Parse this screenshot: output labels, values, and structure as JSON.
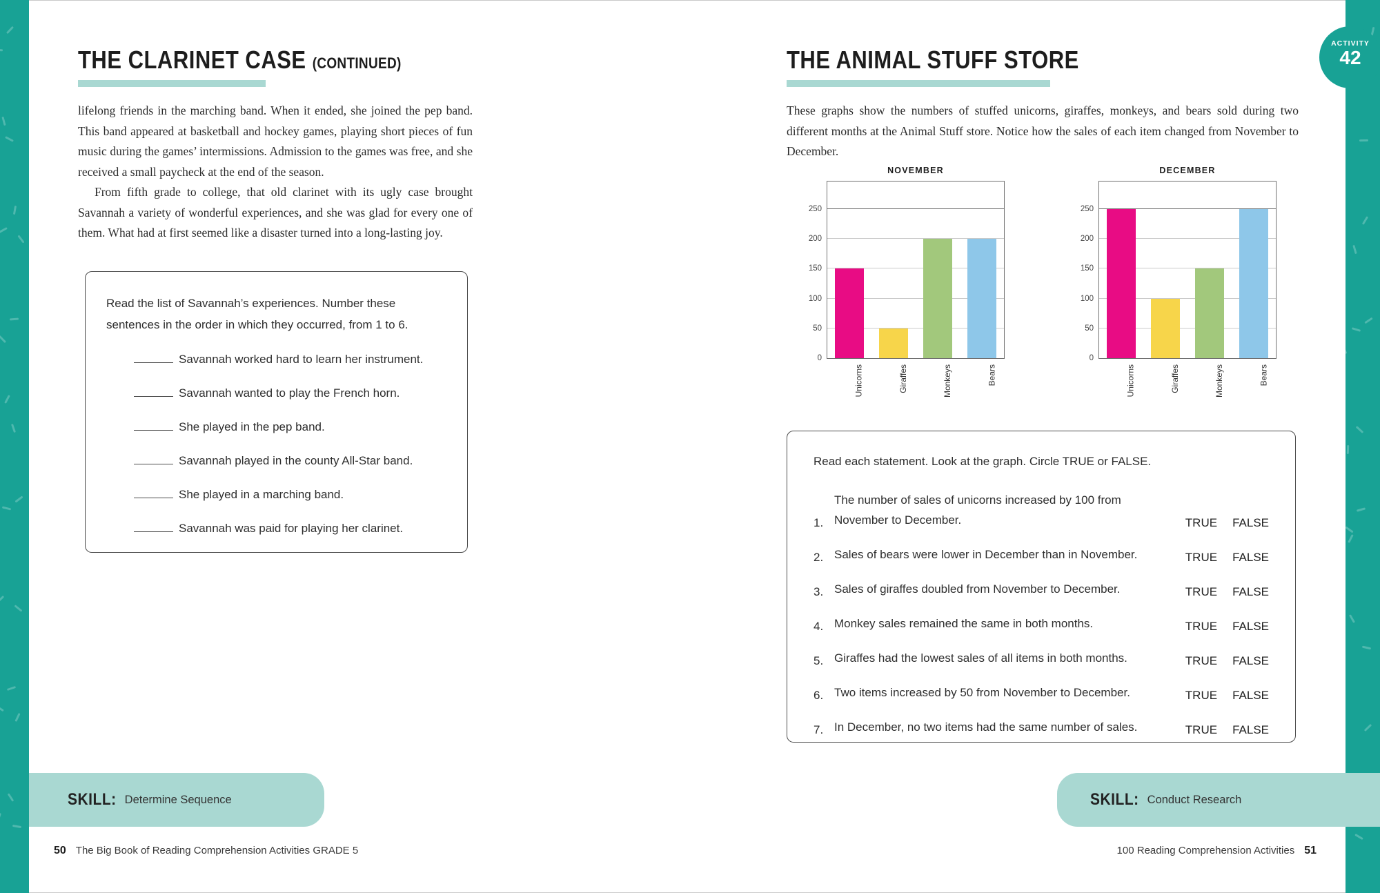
{
  "colors": {
    "border_teal": "#18a295",
    "banner_teal": "#a9d8d2",
    "underline_teal": "#a9d8d2"
  },
  "badge": {
    "label": "ACTIVITY",
    "number": "42"
  },
  "page_left": {
    "title": "THE CLARINET CASE",
    "title_suffix": "(CONTINUED)",
    "paragraph_1": "lifelong friends in the marching band. When it ended, she joined the pep band. This band appeared at basketball and hockey games, playing short pieces of fun music during the games’ intermissions. Admission to the games was free, and she received a small paycheck at the end of the season.",
    "paragraph_2": "From fifth grade to college, that old clarinet with its ugly case brought Savannah a variety of wonderful experiences, and she was glad for every one of them. What had at first seemed like a disaster turned into a long-lasting joy.",
    "activity_box": {
      "prompt": "Read the list of Savannah’s experiences. Number these sentences in the order in which they occurred, from 1 to 6.",
      "items": [
        "Savannah worked hard to learn her instrument.",
        "Savannah wanted to play the French horn.",
        "She played in the pep band.",
        "Savannah played in the county All-Star band.",
        "She played in a marching band.",
        "Savannah was paid for playing her clarinet."
      ]
    },
    "skill_label": "SKILL:",
    "skill_value": "Determine Sequence",
    "page_number": "50",
    "footer_text": "The Big Book of Reading Comprehension Activities GRADE 5"
  },
  "page_right": {
    "title": "THE ANIMAL STUFF STORE",
    "intro": "These graphs show the numbers of stuffed unicorns, giraffes, monkeys, and bears sold during two different months at the Animal Stuff store. Notice how the sales of each item changed from November to December.",
    "tf_box": {
      "prompt": "Read each statement. Look at the graph. Circle TRUE or FALSE.",
      "true_label": "TRUE",
      "false_label": "FALSE",
      "statements": [
        {
          "num": "1.",
          "text": "The number of sales of unicorns increased by 100 from\nNovember to December."
        },
        {
          "num": "2.",
          "text": "Sales of bears were lower in December than in November."
        },
        {
          "num": "3.",
          "text": "Sales of giraffes doubled from November to December."
        },
        {
          "num": "4.",
          "text": "Monkey sales remained the same in both months."
        },
        {
          "num": "5.",
          "text": "Giraffes had the lowest sales of all items in both months."
        },
        {
          "num": "6.",
          "text": "Two items increased by 50 from November to December."
        },
        {
          "num": "7.",
          "text": "In December, no two items had the same number of sales."
        }
      ]
    },
    "skill_label": "SKILL:",
    "skill_value": "Conduct Research",
    "footer_text": "100 Reading Comprehension Activities",
    "page_number": "51"
  },
  "chart_data": [
    {
      "type": "bar",
      "title": "NOVEMBER",
      "categories": [
        "Unicorns",
        "Giraffes",
        "Monkeys",
        "Bears"
      ],
      "values": [
        150,
        50,
        200,
        200
      ],
      "bar_colors": [
        "#e80c84",
        "#f7d54a",
        "#a2c87c",
        "#8ec7e9"
      ],
      "ylim": [
        0,
        300
      ],
      "yticks": [
        0,
        50,
        100,
        150,
        200,
        250
      ],
      "grid": true,
      "legend": "none",
      "xlabel": "",
      "ylabel": ""
    },
    {
      "type": "bar",
      "title": "DECEMBER",
      "categories": [
        "Unicorns",
        "Giraffes",
        "Monkeys",
        "Bears"
      ],
      "values": [
        250,
        100,
        150,
        250
      ],
      "bar_colors": [
        "#e80c84",
        "#f7d54a",
        "#a2c87c",
        "#8ec7e9"
      ],
      "ylim": [
        0,
        300
      ],
      "yticks": [
        0,
        50,
        100,
        150,
        200,
        250
      ],
      "grid": true,
      "legend": "none",
      "xlabel": "",
      "ylabel": ""
    }
  ]
}
